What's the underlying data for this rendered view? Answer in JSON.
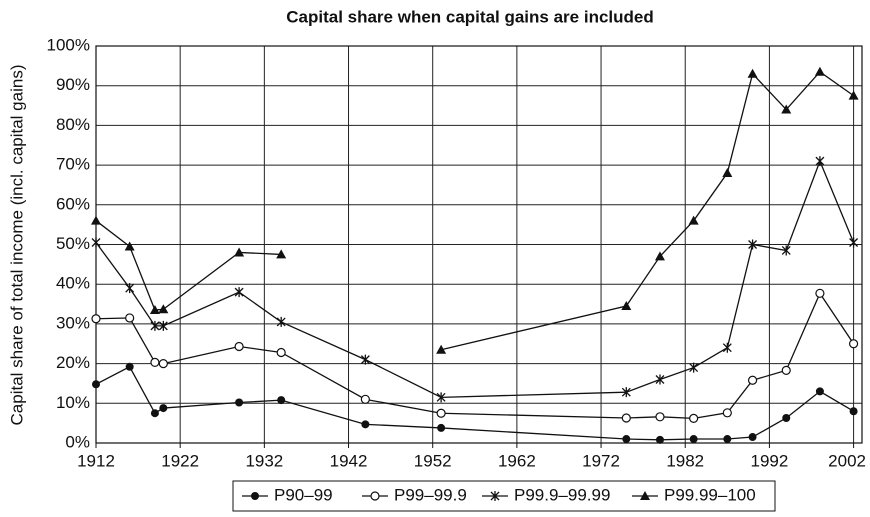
{
  "chart_data": {
    "type": "line",
    "title": "Capital share when capital gains are included",
    "y_label": "Capital share of total income (incl. capital gains)",
    "x": [
      1912,
      1916,
      1919,
      1920,
      1929,
      1934,
      1944,
      1953,
      1975,
      1979,
      1983,
      1987,
      1990,
      1994,
      1998,
      2002
    ],
    "series": [
      {
        "name": "P90–99",
        "color": "#111111",
        "marker": "filled-circle",
        "values": [
          14.8,
          19.2,
          7.5,
          8.8,
          10.2,
          10.8,
          4.7,
          3.8,
          1.0,
          0.8,
          1.0,
          1.0,
          1.5,
          6.3,
          13,
          8
        ]
      },
      {
        "name": "P99–99.9",
        "color": "#111111",
        "marker": "open-circle",
        "values": [
          31.3,
          31.5,
          20.3,
          20,
          24.3,
          22.8,
          11,
          7.5,
          6.3,
          6.6,
          6.2,
          7.6,
          15.8,
          18.3,
          37.7,
          25
        ]
      },
      {
        "name": "P99.9–99.99",
        "color": "#111111",
        "marker": "star",
        "values": [
          50.5,
          39,
          29.5,
          29.5,
          38,
          30.5,
          21,
          11.5,
          12.8,
          16,
          19,
          24,
          50,
          48.5,
          71,
          50.5
        ]
      },
      {
        "name": "P99.99–100",
        "color": "#111111",
        "marker": "triangle",
        "values": [
          56,
          49.5,
          33.5,
          33.7,
          48,
          47.5,
          null,
          23.5,
          34.5,
          47,
          56,
          68,
          93,
          84,
          93.5,
          87.5
        ]
      }
    ],
    "xlim": [
      1912,
      2003
    ],
    "xticks": [
      1912,
      1922,
      1932,
      1942,
      1952,
      1962,
      1972,
      1982,
      1992,
      2002
    ],
    "ylim": [
      0,
      100
    ],
    "yticks": [
      {
        "value": 0,
        "label": "0%"
      },
      {
        "value": 10,
        "label": "10%"
      },
      {
        "value": 20,
        "label": "20%"
      },
      {
        "value": 30,
        "label": "30%"
      },
      {
        "value": 40,
        "label": "40%"
      },
      {
        "value": 50,
        "label": "50%"
      },
      {
        "value": 60,
        "label": "60%"
      },
      {
        "value": 70,
        "label": "70%"
      },
      {
        "value": 80,
        "label": "80%"
      },
      {
        "value": 90,
        "label": "90%"
      },
      {
        "value": 100,
        "label": "100%"
      }
    ],
    "grid": true,
    "legend": "bottom"
  }
}
